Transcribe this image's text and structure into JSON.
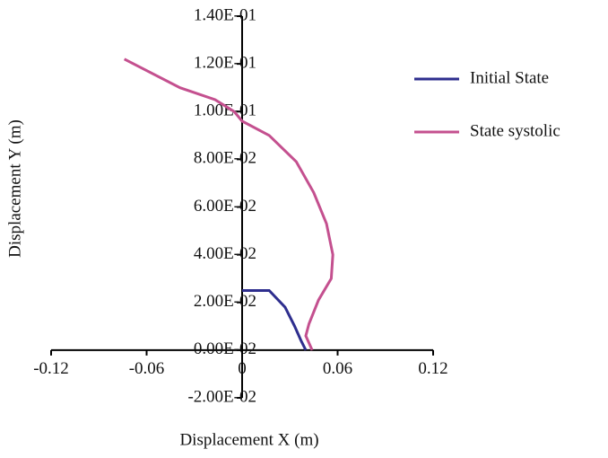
{
  "chart_data": {
    "type": "line",
    "xlabel": "Displacement X (m)",
    "ylabel": "Displacement Y (m)",
    "xlim": [
      -0.12,
      0.12
    ],
    "xticks": [
      -0.12,
      -0.06,
      0,
      0.06,
      0.12
    ],
    "ylim": [
      -0.02,
      0.14
    ],
    "yticks": [
      {
        "value": -0.02,
        "label": "-2.00E-02"
      },
      {
        "value": 0,
        "label": "0.00E-02"
      },
      {
        "value": 0.02,
        "label": "2.00E-02"
      },
      {
        "value": 0.04,
        "label": "4.00E-02"
      },
      {
        "value": 0.06,
        "label": "6.00E-02"
      },
      {
        "value": 0.08,
        "label": "8.00E-02"
      },
      {
        "value": 0.1,
        "label": "1.00E-01"
      },
      {
        "value": 0.12,
        "label": "1.20E-01"
      },
      {
        "value": 0.14,
        "label": "1.40E-01"
      }
    ],
    "legend": "right",
    "series": [
      {
        "name": "Initial State",
        "color": "#2e2e8e",
        "x": [
          0,
          0.017,
          0.027,
          0.033,
          0.037,
          0.04
        ],
        "values": [
          0.025,
          0.025,
          0.018,
          0.01,
          0.004,
          0
        ]
      },
      {
        "name": "State systolic",
        "color": "#c4508f",
        "x": [
          -0.074,
          -0.039,
          -0.017,
          -0.005,
          0,
          0.017,
          0.034,
          0.045,
          0.053,
          0.057,
          0.056,
          0.048,
          0.042,
          0.04,
          0.044
        ],
        "values": [
          0.122,
          0.11,
          0.105,
          0.1,
          0.096,
          0.09,
          0.079,
          0.066,
          0.053,
          0.04,
          0.03,
          0.021,
          0.011,
          0.006,
          0
        ]
      }
    ]
  }
}
